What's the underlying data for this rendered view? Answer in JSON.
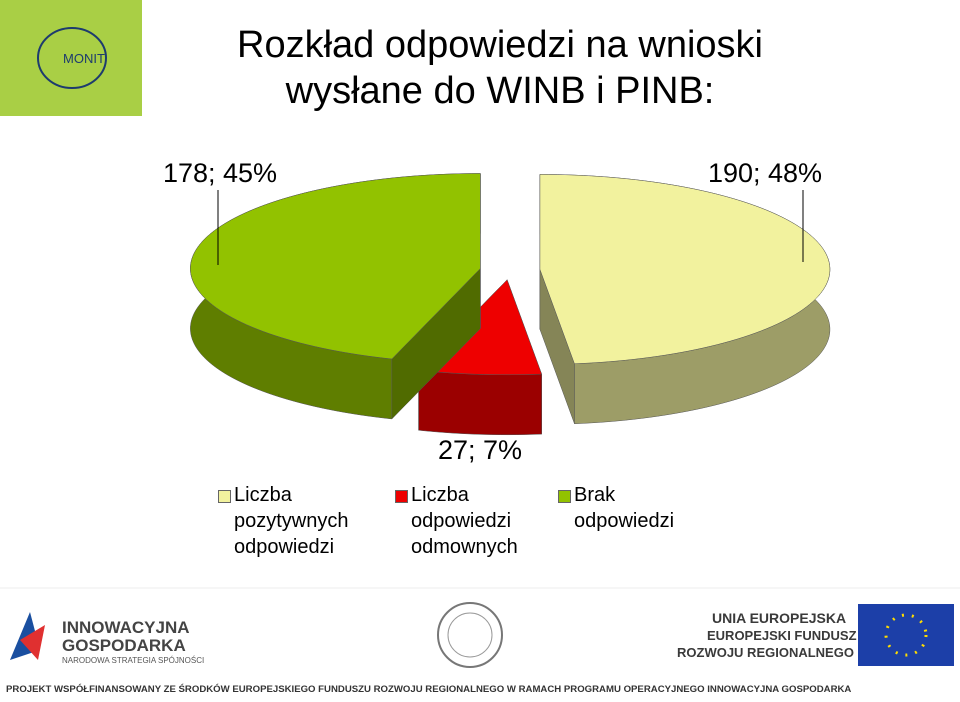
{
  "chart_data": {
    "type": "pie3d",
    "title": "Rozkład odpowiedzi na wnioski wysłane do WINB i PINB:",
    "categories": [
      "Liczba pozytywnych odpowiedzi",
      "Liczba odpowiedzi odmownych",
      "Brak odpowiedzi"
    ],
    "values": [
      190,
      27,
      178
    ],
    "value_labels": [
      "190; 48%",
      "27; 7%",
      "178; 45%"
    ],
    "colors": [
      "#f2f29e",
      "#ee0000",
      "#92c200"
    ],
    "legend": "bottom"
  },
  "page": {
    "logo": "MONIT",
    "left_logo": [
      "INNOWACYJNA",
      "GOSPODARKA",
      "NARODOWA STRATEGIA SPÓJNOŚCI"
    ],
    "right_logo": [
      "UNIA EUROPEJSKA",
      "EUROPEJSKI FUNDUSZ",
      "ROZWOJU REGIONALNEGO"
    ],
    "footer": "PROJEKT WSPÓŁFINANSOWANY ZE ŚRODKÓW EUROPEJSKIEGO FUNDUSZU ROZWOJU REGIONALNEGO W RAMACH PROGRAMU OPERACYJNEGO INNOWACYJNA GOSPODARKA"
  }
}
